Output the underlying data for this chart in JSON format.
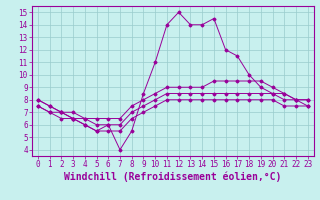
{
  "xlabel": "Windchill (Refroidissement éolien,°C)",
  "ylabel": "",
  "background_color": "#c8f0ee",
  "grid_color": "#99cccc",
  "line_color": "#990099",
  "xlim": [
    -0.5,
    23.5
  ],
  "ylim": [
    3.5,
    15.5
  ],
  "xticks": [
    0,
    1,
    2,
    3,
    4,
    5,
    6,
    7,
    8,
    9,
    10,
    11,
    12,
    13,
    14,
    15,
    16,
    17,
    18,
    19,
    20,
    21,
    22,
    23
  ],
  "yticks": [
    4,
    5,
    6,
    7,
    8,
    9,
    10,
    11,
    12,
    13,
    14,
    15
  ],
  "line1_x": [
    0,
    1,
    2,
    3,
    4,
    5,
    6,
    7,
    8,
    9,
    10,
    11,
    12,
    13,
    14,
    15,
    16,
    17,
    18,
    19,
    20,
    21,
    22,
    23
  ],
  "line1_y": [
    8.0,
    7.5,
    7.0,
    6.5,
    6.0,
    5.5,
    6.0,
    4.0,
    5.5,
    8.5,
    11.0,
    14.0,
    15.0,
    14.0,
    14.0,
    14.5,
    12.0,
    11.5,
    10.0,
    9.0,
    8.5,
    8.5,
    8.0,
    8.0
  ],
  "line2_x": [
    0,
    1,
    2,
    3,
    4,
    5,
    6,
    7,
    8,
    9,
    10,
    11,
    12,
    13,
    14,
    15,
    16,
    17,
    18,
    19,
    20,
    21,
    22,
    23
  ],
  "line2_y": [
    8.0,
    7.5,
    7.0,
    7.0,
    6.5,
    6.5,
    6.5,
    6.5,
    7.5,
    8.0,
    8.5,
    9.0,
    9.0,
    9.0,
    9.0,
    9.5,
    9.5,
    9.5,
    9.5,
    9.5,
    9.0,
    8.5,
    8.0,
    8.0
  ],
  "line3_x": [
    0,
    1,
    2,
    3,
    4,
    5,
    6,
    7,
    8,
    9,
    10,
    11,
    12,
    13,
    14,
    15,
    16,
    17,
    18,
    19,
    20,
    21,
    22,
    23
  ],
  "line3_y": [
    7.5,
    7.0,
    7.0,
    6.5,
    6.5,
    6.0,
    6.0,
    6.0,
    7.0,
    7.5,
    8.0,
    8.5,
    8.5,
    8.5,
    8.5,
    8.5,
    8.5,
    8.5,
    8.5,
    8.5,
    8.5,
    8.0,
    8.0,
    7.5
  ],
  "line4_x": [
    0,
    1,
    2,
    3,
    4,
    5,
    6,
    7,
    8,
    9,
    10,
    11,
    12,
    13,
    14,
    15,
    16,
    17,
    18,
    19,
    20,
    21,
    22,
    23
  ],
  "line4_y": [
    7.5,
    7.0,
    6.5,
    6.5,
    6.0,
    5.5,
    5.5,
    5.5,
    6.5,
    7.0,
    7.5,
    8.0,
    8.0,
    8.0,
    8.0,
    8.0,
    8.0,
    8.0,
    8.0,
    8.0,
    8.0,
    7.5,
    7.5,
    7.5
  ],
  "tick_fontsize": 5.5,
  "label_fontsize": 7
}
